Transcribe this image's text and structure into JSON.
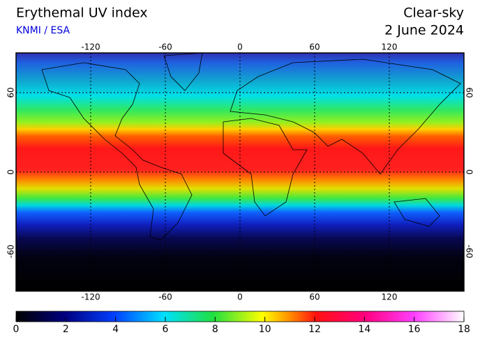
{
  "header": {
    "title": "Erythemal UV index",
    "subtitle": "KNMI / ESA",
    "condition": "Clear-sky",
    "date": "2 June 2024"
  },
  "map": {
    "xlim": [
      -180,
      180
    ],
    "ylim": [
      -90,
      90
    ],
    "xticks": [
      -120,
      -60,
      0,
      60,
      120
    ],
    "yticks": [
      -60,
      0,
      60
    ]
  },
  "colorbar": {
    "lim": [
      0,
      18
    ],
    "ticks": [
      0,
      2,
      4,
      6,
      8,
      10,
      12,
      14,
      16,
      18
    ]
  }
}
